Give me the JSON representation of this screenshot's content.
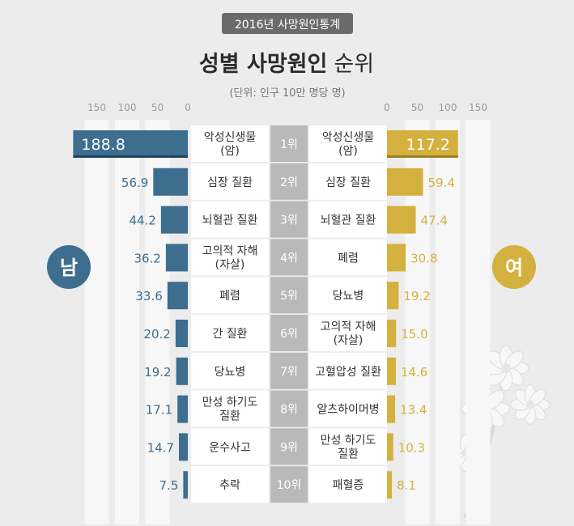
{
  "badge": "2016년 사망원인통계",
  "title_bold": "성별 사망원인",
  "title_light": "순위",
  "unit": "(단위: 인구 10만 명당 명)",
  "male_label": "남",
  "female_label": "여",
  "colors": {
    "male": "#3d6e90",
    "female": "#d4b13e",
    "rank_box": "#b9b9b9",
    "label_box": "#ffffff",
    "bg": "#ececec"
  },
  "chart_data": {
    "type": "bar",
    "title": "성별 사망원인 순위",
    "axis_ticks": [
      150,
      100,
      50,
      0
    ],
    "xlim": [
      0,
      150
    ],
    "ranks": [
      "1위",
      "2위",
      "3위",
      "4위",
      "5위",
      "6위",
      "7위",
      "8위",
      "9위",
      "10위"
    ],
    "series": [
      {
        "name": "남",
        "causes": [
          [
            "악성신생물",
            "(암)"
          ],
          [
            "심장 질환"
          ],
          [
            "뇌혈관 질환"
          ],
          [
            "고의적 자해",
            "(자살)"
          ],
          [
            "폐렴"
          ],
          [
            "간 질환"
          ],
          [
            "당뇨병"
          ],
          [
            "만성 하기도",
            "질환"
          ],
          [
            "운수사고"
          ],
          [
            "추락"
          ]
        ],
        "values": [
          188.8,
          56.9,
          44.2,
          36.2,
          33.6,
          20.2,
          19.2,
          17.1,
          14.7,
          7.5
        ],
        "value_labels": [
          "188.8",
          "56.9",
          "44.2",
          "36.2",
          "33.6",
          "20.2",
          "19.2",
          "17.1",
          "14.7",
          "7.5"
        ]
      },
      {
        "name": "여",
        "causes": [
          [
            "악성신생물",
            "(암)"
          ],
          [
            "심장 질환"
          ],
          [
            "뇌혈관 질환"
          ],
          [
            "폐렴"
          ],
          [
            "당뇨병"
          ],
          [
            "고의적 자해",
            "(자살)"
          ],
          [
            "고혈압성 질환"
          ],
          [
            "알츠하이머병"
          ],
          [
            "만성 하기도",
            "질환"
          ],
          [
            "패혈증"
          ]
        ],
        "values": [
          117.2,
          59.4,
          47.4,
          30.8,
          19.2,
          15.0,
          14.6,
          13.4,
          10.3,
          8.1
        ],
        "value_labels": [
          "117.2",
          "59.4",
          "47.4",
          "30.8",
          "19.2",
          "15.0",
          "14.6",
          "13.4",
          "10.3",
          "8.1"
        ]
      }
    ]
  }
}
